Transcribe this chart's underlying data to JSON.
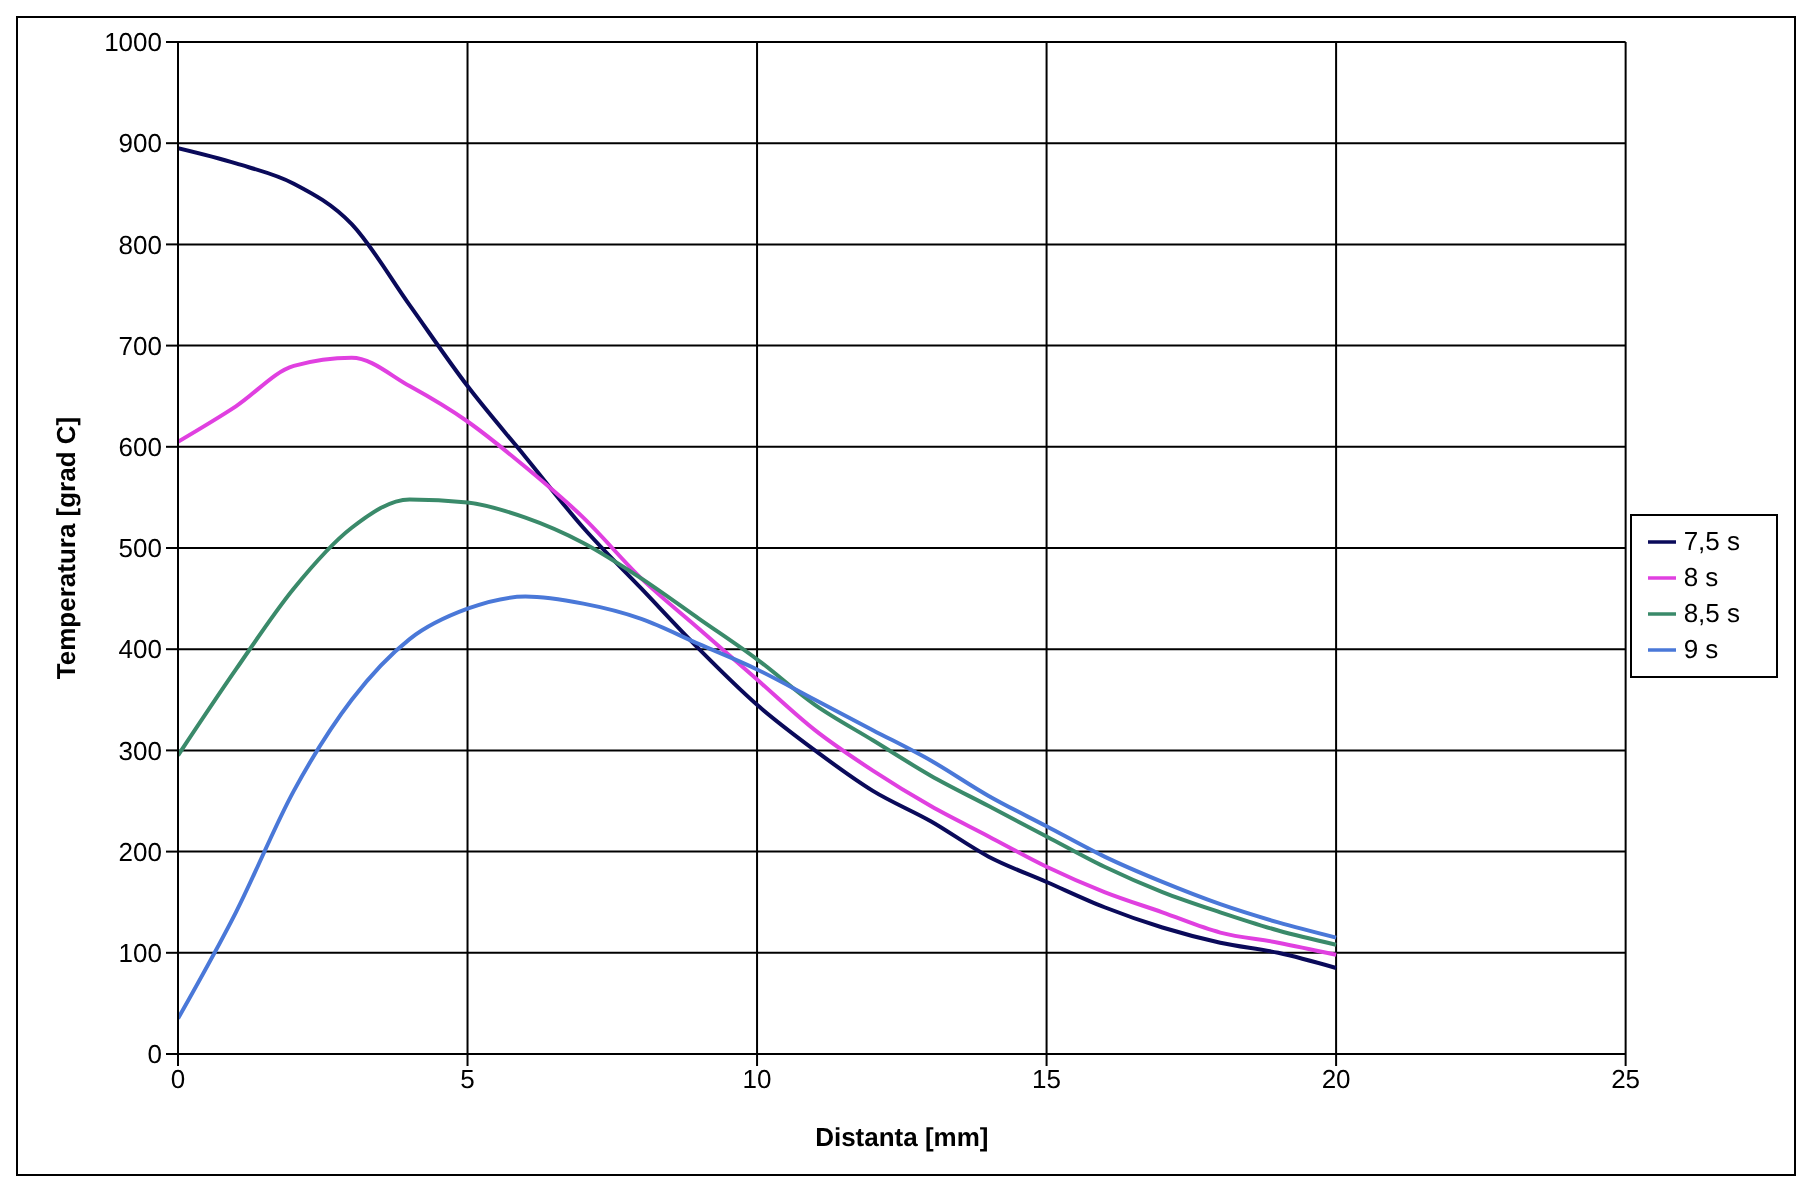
{
  "chart_data": {
    "type": "line",
    "xlabel": "Distanta [mm]",
    "ylabel": "Temperatura [grad C]",
    "x": [
      0,
      1,
      2,
      3,
      4,
      5,
      6,
      7,
      8,
      9,
      10,
      11,
      12,
      13,
      14,
      15,
      16,
      17,
      18,
      19,
      20
    ],
    "series": [
      {
        "name": "7,5 s",
        "color": "#0a0a5a",
        "values": [
          895,
          880,
          860,
          820,
          740,
          660,
          590,
          520,
          460,
          400,
          345,
          300,
          260,
          230,
          195,
          170,
          145,
          125,
          110,
          100,
          85
        ]
      },
      {
        "name": "8 s",
        "color": "#e040e0",
        "values": [
          605,
          640,
          680,
          688,
          660,
          625,
          580,
          530,
          470,
          420,
          370,
          320,
          280,
          245,
          215,
          185,
          160,
          140,
          120,
          110,
          98
        ]
      },
      {
        "name": "8,5 s",
        "color": "#3a8a6a",
        "values": [
          295,
          380,
          460,
          520,
          548,
          545,
          530,
          505,
          470,
          430,
          390,
          345,
          310,
          275,
          245,
          215,
          185,
          160,
          140,
          122,
          108
        ]
      },
      {
        "name": "9 s",
        "color": "#4a78d8",
        "values": [
          35,
          140,
          260,
          350,
          410,
          440,
          452,
          445,
          430,
          405,
          380,
          350,
          320,
          290,
          255,
          225,
          195,
          170,
          148,
          130,
          115
        ]
      }
    ],
    "xlim": [
      0,
      25
    ],
    "xticks": [
      0,
      5,
      10,
      15,
      20,
      25
    ],
    "ylim": [
      0,
      1000
    ],
    "yticks": [
      0,
      100,
      200,
      300,
      400,
      500,
      600,
      700,
      800,
      900,
      1000
    ],
    "grid": true,
    "legend": "right",
    "marker": "none",
    "line_style": "solid"
  }
}
